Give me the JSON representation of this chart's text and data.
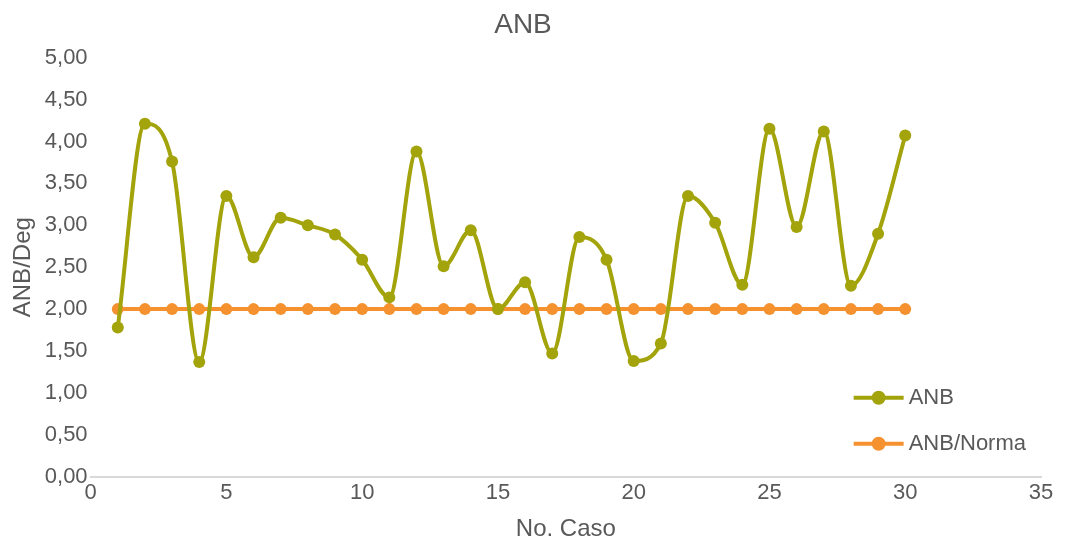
{
  "chart_data": {
    "type": "line",
    "title": "ANB",
    "xlabel": "No. Caso",
    "ylabel": "ANB/Deg",
    "x": [
      1,
      2,
      3,
      4,
      5,
      6,
      7,
      8,
      9,
      10,
      11,
      12,
      13,
      14,
      15,
      16,
      17,
      18,
      19,
      20,
      21,
      22,
      23,
      24,
      25,
      26,
      27,
      28,
      29,
      30
    ],
    "series": [
      {
        "name": "ANB",
        "color": "#a3a30c",
        "values": [
          1.78,
          4.21,
          3.76,
          1.37,
          3.35,
          2.62,
          3.09,
          3.0,
          2.89,
          2.59,
          2.14,
          3.88,
          2.51,
          2.94,
          2.0,
          2.32,
          1.47,
          2.86,
          2.59,
          1.38,
          1.59,
          3.35,
          3.03,
          2.29,
          4.15,
          2.98,
          4.12,
          2.28,
          2.9,
          4.07
        ]
      },
      {
        "name": "ANB/Norma",
        "color": "#f5922f",
        "values": [
          2,
          2,
          2,
          2,
          2,
          2,
          2,
          2,
          2,
          2,
          2,
          2,
          2,
          2,
          2,
          2,
          2,
          2,
          2,
          2,
          2,
          2,
          2,
          2,
          2,
          2,
          2,
          2,
          2,
          2
        ]
      }
    ],
    "xlim": [
      0,
      35
    ],
    "xticks": [
      0,
      5,
      10,
      15,
      20,
      25,
      30,
      35
    ],
    "ylim": [
      0,
      5
    ],
    "yticks": [
      {
        "value": 0,
        "label": "0,00"
      },
      {
        "value": 0.5,
        "label": "0,50"
      },
      {
        "value": 1,
        "label": "1,00"
      },
      {
        "value": 1.5,
        "label": "1,50"
      },
      {
        "value": 2,
        "label": "2,00"
      },
      {
        "value": 2.5,
        "label": "2,50"
      },
      {
        "value": 3,
        "label": "3,00"
      },
      {
        "value": 3.5,
        "label": "3,50"
      },
      {
        "value": 4,
        "label": "4,00"
      },
      {
        "value": 4.5,
        "label": "4,50"
      },
      {
        "value": 5,
        "label": "5,00"
      }
    ],
    "grid": false,
    "legend": "bottom right",
    "marker": "circle",
    "line_style": "solid"
  }
}
